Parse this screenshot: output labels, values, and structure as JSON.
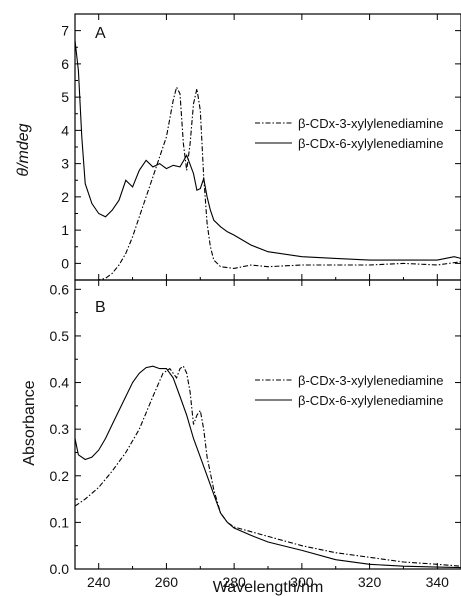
{
  "chart_data": [
    {
      "panel": "A",
      "type": "line",
      "xlabel": "",
      "ylabel": "θ/mdeg",
      "xlim": [
        233,
        347
      ],
      "ylim": [
        -0.5,
        7.5
      ],
      "y_ticks": [
        0,
        1,
        2,
        3,
        4,
        5,
        6,
        7
      ],
      "grid": false,
      "legend_position": "right",
      "series": [
        {
          "name": "β-CDx-3-xylylenediamine",
          "line_style": "dash-dot",
          "x": [
            233,
            235,
            238,
            240,
            242,
            244,
            246,
            248,
            250,
            252,
            254,
            256,
            258,
            260,
            262,
            263,
            264,
            265,
            266,
            267,
            268,
            269,
            270,
            271,
            272,
            273,
            274,
            276,
            280,
            285,
            290,
            300,
            310,
            320,
            330,
            340,
            347
          ],
          "values": [
            -0.6,
            -0.6,
            -0.55,
            -0.5,
            -0.45,
            -0.3,
            -0.05,
            0.3,
            0.8,
            1.4,
            2.0,
            2.6,
            3.2,
            3.8,
            4.9,
            5.3,
            5.1,
            3.6,
            2.8,
            3.6,
            4.8,
            5.25,
            4.6,
            2.6,
            1.2,
            0.5,
            0.1,
            -0.1,
            -0.15,
            -0.05,
            -0.1,
            -0.05,
            -0.05,
            -0.05,
            0.0,
            -0.05,
            0.05
          ]
        },
        {
          "name": "β-CDx-6-xylylenediamine",
          "line_style": "solid",
          "x": [
            233,
            234,
            235,
            236,
            238,
            240,
            242,
            244,
            246,
            248,
            250,
            252,
            254,
            256,
            258,
            260,
            262,
            264,
            266,
            268,
            269,
            270,
            271,
            272,
            273,
            274,
            276,
            278,
            280,
            285,
            290,
            300,
            310,
            320,
            330,
            340,
            345,
            347
          ],
          "values": [
            6.7,
            5.8,
            3.8,
            2.4,
            1.8,
            1.5,
            1.4,
            1.6,
            1.9,
            2.5,
            2.3,
            2.8,
            3.1,
            2.9,
            3.0,
            2.85,
            2.95,
            2.9,
            3.25,
            2.7,
            2.2,
            2.25,
            2.55,
            2.0,
            1.6,
            1.3,
            1.1,
            0.95,
            0.85,
            0.55,
            0.35,
            0.2,
            0.15,
            0.1,
            0.1,
            0.1,
            0.2,
            0.15
          ]
        }
      ]
    },
    {
      "panel": "B",
      "type": "line",
      "xlabel": "Wavelength/nm",
      "ylabel": "Absorbance",
      "xlim": [
        233,
        347
      ],
      "ylim": [
        0.0,
        0.62
      ],
      "x_ticks": [
        240,
        260,
        280,
        300,
        320,
        340
      ],
      "y_ticks": [
        0.0,
        0.1,
        0.2,
        0.3,
        0.4,
        0.5,
        0.6
      ],
      "grid": false,
      "legend_position": "right",
      "series": [
        {
          "name": "β-CDx-3-xylylenediamine",
          "line_style": "dash-dot",
          "x": [
            233,
            236,
            240,
            244,
            248,
            252,
            256,
            259,
            261,
            263,
            264,
            265,
            266,
            267,
            268,
            269,
            270,
            271,
            272,
            274,
            276,
            278,
            280,
            285,
            290,
            300,
            310,
            320,
            330,
            340,
            347
          ],
          "values": [
            0.135,
            0.15,
            0.175,
            0.21,
            0.25,
            0.3,
            0.37,
            0.42,
            0.43,
            0.41,
            0.43,
            0.435,
            0.42,
            0.38,
            0.31,
            0.33,
            0.34,
            0.3,
            0.24,
            0.17,
            0.12,
            0.1,
            0.09,
            0.08,
            0.07,
            0.05,
            0.035,
            0.025,
            0.015,
            0.01,
            0.006
          ]
        },
        {
          "name": "β-CDx-6-xylylenediamine",
          "line_style": "solid",
          "x": [
            233,
            234,
            236,
            238,
            240,
            242,
            244,
            246,
            248,
            250,
            252,
            254,
            256,
            258,
            260,
            262,
            264,
            266,
            268,
            270,
            272,
            274,
            276,
            278,
            280,
            285,
            290,
            300,
            310,
            320,
            330,
            340,
            347
          ],
          "values": [
            0.28,
            0.245,
            0.235,
            0.24,
            0.255,
            0.28,
            0.31,
            0.34,
            0.37,
            0.4,
            0.42,
            0.432,
            0.435,
            0.43,
            0.43,
            0.41,
            0.37,
            0.33,
            0.28,
            0.24,
            0.2,
            0.16,
            0.12,
            0.1,
            0.088,
            0.072,
            0.058,
            0.04,
            0.02,
            0.01,
            0.006,
            0.004,
            0.003
          ]
        }
      ]
    }
  ],
  "figure_text": {
    "panel_a_label": "A",
    "panel_b_label": "B"
  }
}
